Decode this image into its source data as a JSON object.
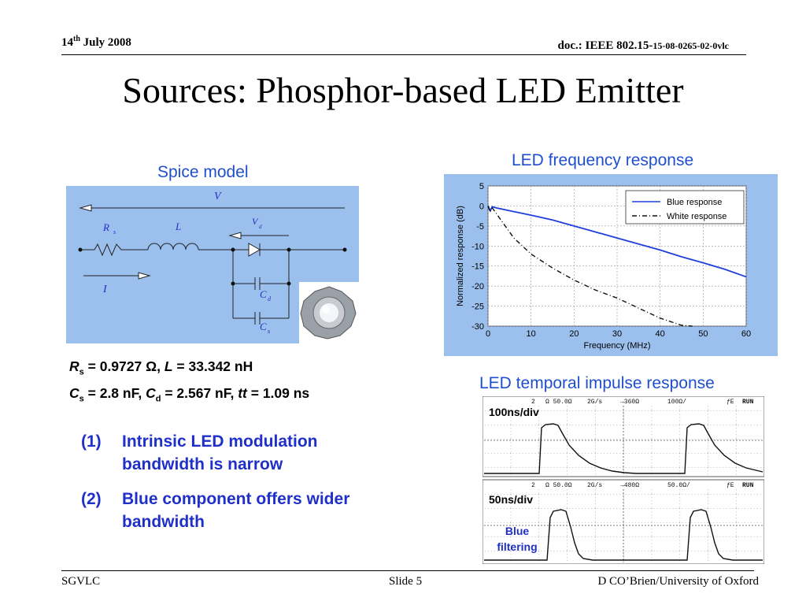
{
  "header": {
    "date_prefix": "14",
    "date_sup": "th",
    "date_rest": " July 2008",
    "doc_main": "doc.: IEEE 802.15-",
    "doc_suffix": "15-08-0265-02-0vlc"
  },
  "title": "Sources: Phosphor-based LED Emitter",
  "spice": {
    "caption": "Spice model",
    "labels": {
      "V": "V",
      "R": "R",
      "R_sub": "s",
      "L": "L",
      "Vd": "V",
      "Vd_sub": "d",
      "I": "I",
      "Cd": "C",
      "Cd_sub": "d",
      "Cs": "C",
      "Cs_sub": "s"
    }
  },
  "params": {
    "line1": {
      "R": "R",
      "R_sub": "s",
      "R_val": " = 0.9727 Ω, ",
      "L": "L",
      "L_val": " = 33.342 nH"
    },
    "line2": {
      "C": "C",
      "C_sub": "s",
      "C_val": " = 2.8 nF, ",
      "Cd": "C",
      "Cd_sub": "d",
      "Cd_val": " = 2.567 nF, ",
      "tt": "tt",
      "tt_val": " = 1.09 ns"
    }
  },
  "notes": [
    {
      "num": "(1)",
      "text": "Intrinsic LED modulation bandwidth is narrow"
    },
    {
      "num": "(2)",
      "text": "Blue component offers wider bandwidth"
    }
  ],
  "freq_caption": "LED frequency response",
  "impulse_caption": "LED temporal impulse response",
  "scope1": {
    "label": "100ns/div",
    "status": [
      "2",
      "Ω 50.0Ω",
      "2G/s",
      "→360Ω",
      "100Ω/",
      "ƒE",
      "RUN"
    ]
  },
  "scope2": {
    "label": "50ns/div",
    "annotation": "Blue filtering",
    "status": [
      "2",
      "Ω 50.0Ω",
      "2G/s",
      "→480Ω",
      "50.0Ω/",
      "ƒE",
      "RUN"
    ]
  },
  "chart_data": {
    "type": "line",
    "title": "",
    "xlabel": "Frequency (MHz)",
    "ylabel": "Normalized response (dB)",
    "xlim": [
      0,
      60
    ],
    "ylim": [
      -30,
      5
    ],
    "xticks": [
      0,
      10,
      20,
      30,
      40,
      50,
      60
    ],
    "yticks": [
      5,
      0,
      -5,
      -10,
      -15,
      -20,
      -25,
      -30
    ],
    "grid": true,
    "legend_position": "top-right",
    "series": [
      {
        "name": "Blue response",
        "color": "#1f3fdd",
        "style": "solid",
        "x": [
          0,
          0.5,
          1,
          2,
          5,
          10,
          15,
          20,
          25,
          30,
          35,
          40,
          45,
          50,
          55,
          60
        ],
        "y": [
          0,
          -1.2,
          -0.2,
          -0.5,
          -1.2,
          -2.3,
          -3.5,
          -5,
          -6.5,
          -8,
          -9.5,
          -11,
          -12.7,
          -14.2,
          -15.8,
          -17.7
        ]
      },
      {
        "name": "White response",
        "color": "#111111",
        "style": "dashdot",
        "x": [
          0,
          0.5,
          1,
          2,
          4,
          6,
          8,
          10,
          15,
          20,
          25,
          30,
          35,
          40,
          45,
          47.5
        ],
        "y": [
          0,
          -1.5,
          -0.5,
          -2,
          -5,
          -8,
          -10,
          -12,
          -15.5,
          -18.5,
          -21,
          -23,
          -25.5,
          -28,
          -29.8,
          -30
        ]
      }
    ]
  }
}
